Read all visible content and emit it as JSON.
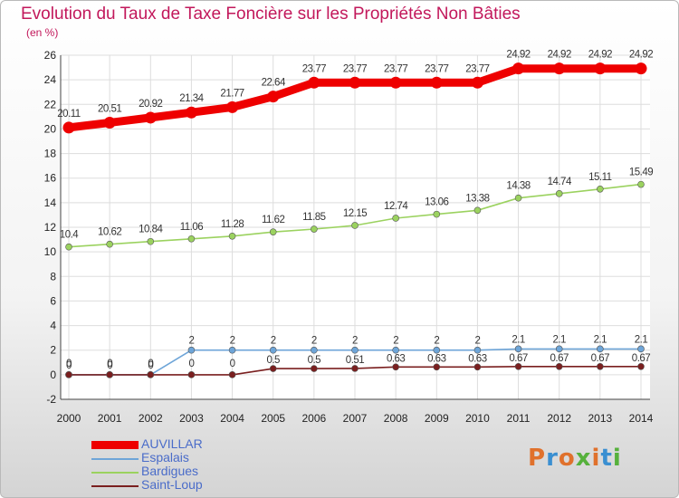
{
  "title": "Evolution du Taux de Taxe Foncière sur les Propriétés Non Bâties",
  "subtitle": "(en %)",
  "logo": {
    "text": "Proxiti",
    "colors": [
      "#e0712c",
      "#3a8fd1",
      "#e0712c",
      "#56b13c",
      "#e0712c",
      "#3a8fd1",
      "#56b13c"
    ]
  },
  "chart_data": {
    "type": "line",
    "x": [
      2000,
      2001,
      2002,
      2003,
      2004,
      2005,
      2006,
      2007,
      2008,
      2009,
      2010,
      2011,
      2012,
      2013,
      2014
    ],
    "x_tick_labels": [
      "2000",
      "2001",
      "2002",
      "2003",
      "2004",
      "2005",
      "2006",
      "2007",
      "2008",
      "2009",
      "2010",
      "2011",
      "2012",
      "2013",
      "2014"
    ],
    "ylim": [
      -2,
      26
    ],
    "y_ticks": [
      -2,
      0,
      2,
      4,
      6,
      8,
      10,
      12,
      14,
      16,
      18,
      20,
      22,
      24,
      26
    ],
    "y_tick_labels": [
      "-2",
      "0",
      "2",
      "4",
      "6",
      "8",
      "10",
      "12",
      "14",
      "16",
      "18",
      "20",
      "22",
      "24",
      "26"
    ],
    "grid": true,
    "legend_position": "bottom-left",
    "series": [
      {
        "name": "AUVILLAR",
        "color": "#ee0000",
        "values": [
          20.11,
          20.51,
          20.92,
          21.34,
          21.77,
          22.64,
          23.77,
          23.77,
          23.77,
          23.77,
          23.77,
          24.92,
          24.92,
          24.92,
          24.92
        ],
        "labels": [
          "20.11",
          "20.51",
          "20.92",
          "21.34",
          "21.77",
          "22.64",
          "23.77",
          "23.77",
          "23.77",
          "23.77",
          "23.77",
          "24.92",
          "24.92",
          "24.92",
          "24.92"
        ]
      },
      {
        "name": "Espalais",
        "color": "#6ea5d8",
        "values": [
          0,
          0,
          0,
          2,
          2,
          2,
          2,
          2,
          2,
          2,
          2,
          2.1,
          2.1,
          2.1,
          2.1
        ],
        "labels": [
          "0",
          "0",
          "0",
          "2",
          "2",
          "2",
          "2",
          "2",
          "2",
          "2",
          "2",
          "2.1",
          "2.1",
          "2.1",
          "2.1"
        ]
      },
      {
        "name": "Bardigues",
        "color": "#9bd25f",
        "values": [
          10.4,
          10.62,
          10.84,
          11.06,
          11.28,
          11.62,
          11.85,
          12.15,
          12.74,
          13.06,
          13.38,
          14.38,
          14.74,
          15.11,
          15.49
        ],
        "labels": [
          "10.4",
          "10.62",
          "10.84",
          "11.06",
          "11.28",
          "11.62",
          "11.85",
          "12.15",
          "12.74",
          "13.06",
          "13.38",
          "14.38",
          "14.74",
          "15.11",
          "15.49"
        ]
      },
      {
        "name": "Saint-Loup",
        "color": "#7a1f1f",
        "values": [
          0,
          0,
          0,
          0,
          0,
          0.5,
          0.5,
          0.51,
          0.63,
          0.63,
          0.63,
          0.67,
          0.67,
          0.67,
          0.67
        ],
        "labels": [
          "0",
          "0",
          "0",
          "0",
          "0",
          "0.5",
          "0.5",
          "0.51",
          "0.63",
          "0.63",
          "0.63",
          "0.67",
          "0.67",
          "0.67",
          "0.67"
        ]
      }
    ]
  }
}
